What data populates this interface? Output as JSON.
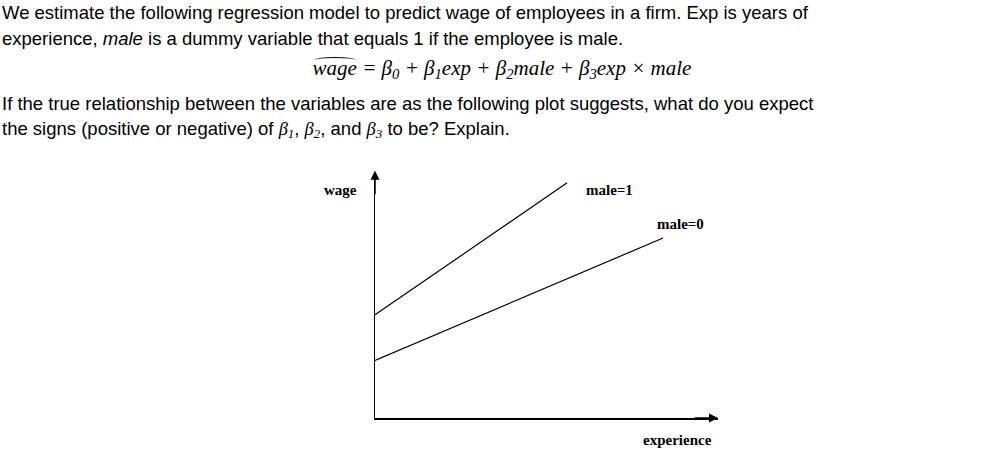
{
  "question": {
    "intro": [
      [
        "We estimate the following regression model to predict wage of employees in a firm. Exp is years of"
      ],
      [
        "experience, ",
        {
          "text": "male",
          "italic": true
        },
        " is a dummy variable that equals 1 if the employee is male."
      ]
    ],
    "equation": [
      {
        "base": "wage",
        "hat": true
      },
      " = ",
      {
        "base": "β",
        "sub": "0"
      },
      " + ",
      {
        "base": "β",
        "sub": "1"
      },
      "exp + ",
      {
        "base": "β",
        "sub": "2"
      },
      "male + ",
      {
        "base": "β",
        "sub": "3"
      },
      "exp × male"
    ],
    "prompt": [
      [
        "If the true relationship between the variables are as the following plot suggests, what do you expect"
      ],
      [
        "the signs (positive or negative) of ",
        {
          "base": "β",
          "sub": "1"
        },
        ", ",
        {
          "base": "β",
          "sub": "2"
        },
        ", and ",
        {
          "base": "β",
          "sub": "3"
        },
        " to be? Explain."
      ]
    ]
  },
  "chart_data": {
    "type": "line",
    "x_label": "experience",
    "y_label": "wage",
    "xlim": [
      0,
      10
    ],
    "ylim": [
      0,
      10
    ],
    "tick_labels": false,
    "grid": false,
    "series": [
      {
        "name": "male=1",
        "color": "#000000",
        "x": [
          0,
          5.6
        ],
        "values": [
          4.3,
          9.8
        ]
      },
      {
        "name": "male=0",
        "color": "#000000",
        "x": [
          0,
          8.4
        ],
        "values": [
          2.4,
          7.5
        ]
      }
    ]
  }
}
